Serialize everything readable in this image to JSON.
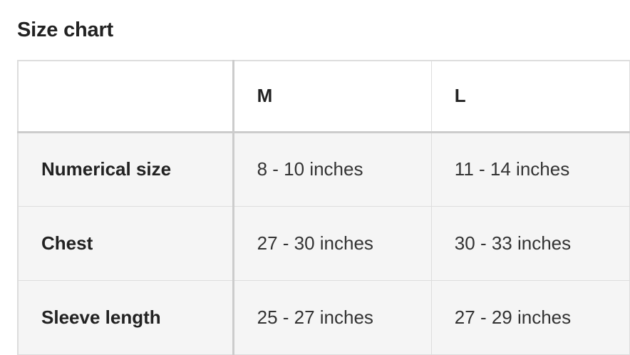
{
  "title": "Size chart",
  "table": {
    "corner_header": "",
    "columns": [
      "M",
      "L"
    ],
    "rows": [
      {
        "label": "Numerical size",
        "values": [
          "8 - 10 inches",
          "11 - 14 inches"
        ]
      },
      {
        "label": "Chest",
        "values": [
          "27 - 30 inches",
          "30 - 33 inches"
        ]
      },
      {
        "label": "Sleeve length",
        "values": [
          "25 - 27 inches",
          "27 - 29 inches"
        ]
      }
    ]
  }
}
